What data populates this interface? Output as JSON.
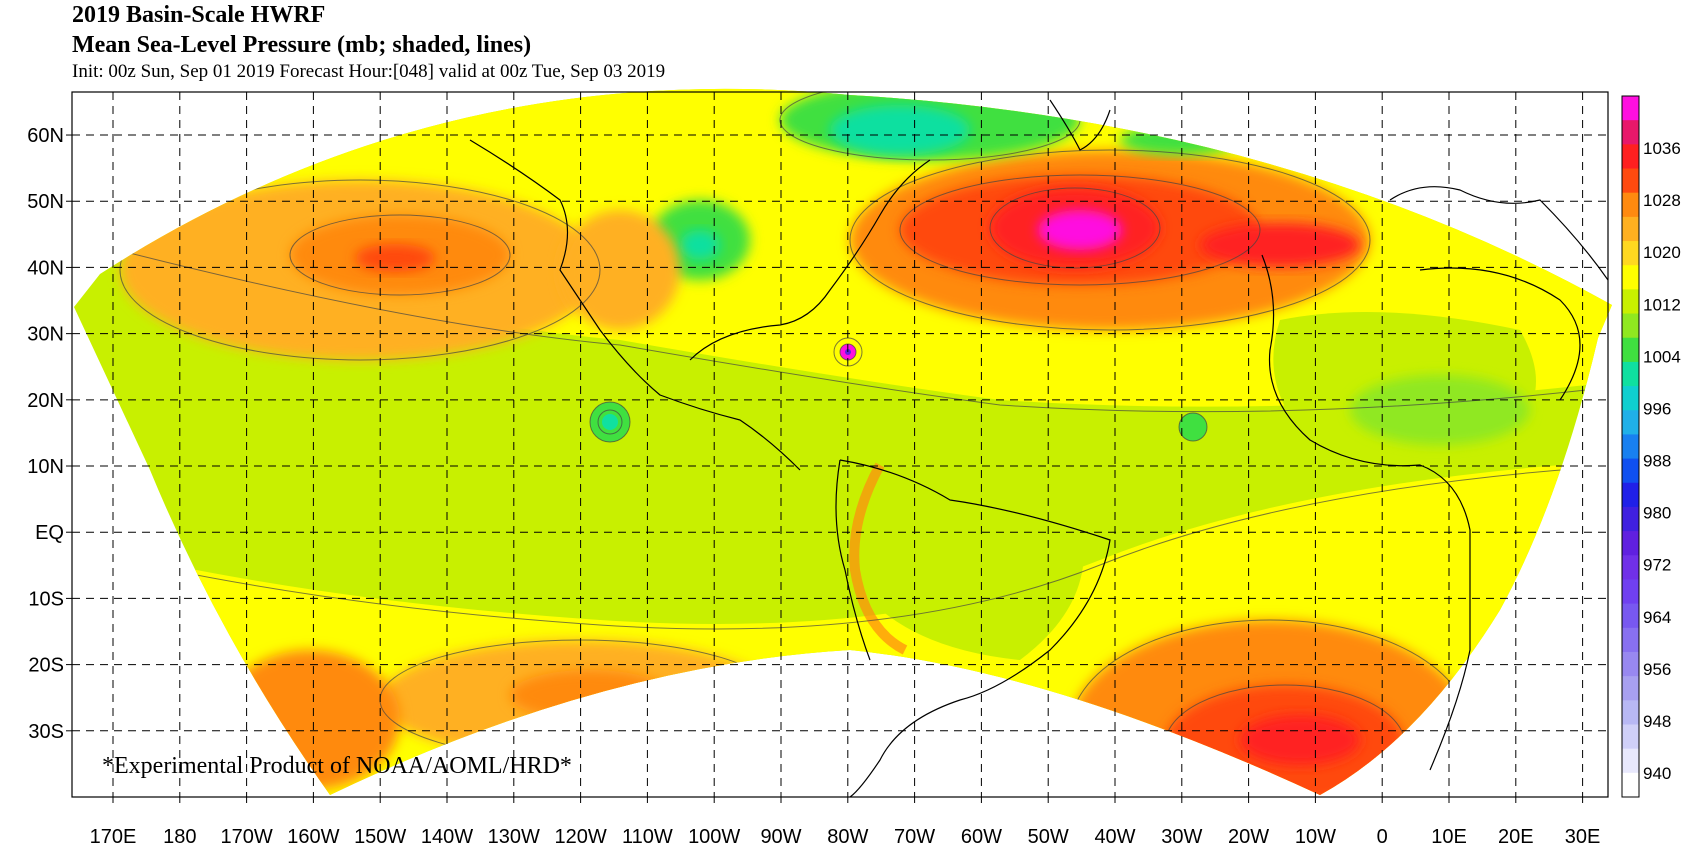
{
  "header": {
    "title": "2019 Basin-Scale HWRF",
    "subtitle": "Mean Sea-Level Pressure (mb; shaded, lines)",
    "info": "Init: 00z Sun, Sep 01 2019  Forecast Hour:[048]  valid at 00z Tue, Sep 03 2019"
  },
  "credit": "*Experimental Product of NOAA/AOML/HRD*",
  "axes": {
    "lat_labels": [
      "60N",
      "50N",
      "40N",
      "30N",
      "20N",
      "10N",
      "EQ",
      "10S",
      "20S",
      "30S"
    ],
    "lon_labels": [
      "170E",
      "180",
      "170W",
      "160W",
      "150W",
      "140W",
      "130W",
      "120W",
      "110W",
      "100W",
      "90W",
      "80W",
      "70W",
      "60W",
      "50W",
      "40W",
      "30W",
      "20W",
      "10W",
      "0",
      "10E",
      "20E",
      "30E"
    ]
  },
  "colorbar": {
    "labels": [
      "1036",
      "1028",
      "1020",
      "1012",
      "1004",
      "996",
      "988",
      "980",
      "972",
      "964",
      "956",
      "948",
      "940"
    ],
    "colors_top_to_bottom": [
      "#ff10e0",
      "#e8186a",
      "#ff2020",
      "#ff4a10",
      "#ff8a10",
      "#ffb020",
      "#ffd820",
      "#ffff00",
      "#c8f000",
      "#90e820",
      "#40e040",
      "#10e0a0",
      "#10d0d0",
      "#20b0e8",
      "#1880f0",
      "#1050f0",
      "#2020e8",
      "#4020e0",
      "#6020e0",
      "#7030e8",
      "#7040f0",
      "#7858f0",
      "#8870f0",
      "#9888f0",
      "#a8a0f0",
      "#b8b8f4",
      "#d0d0f8",
      "#e8e8fc",
      "#ffffff"
    ]
  },
  "map": {
    "background_colors": {
      "base": "#c8f000",
      "warm_band": "#ffff00",
      "high": "#ff8a10",
      "high_core": "#ff2020",
      "peak": "#ff10e0",
      "low": "#40e040",
      "low_core": "#10e0a0"
    }
  }
}
